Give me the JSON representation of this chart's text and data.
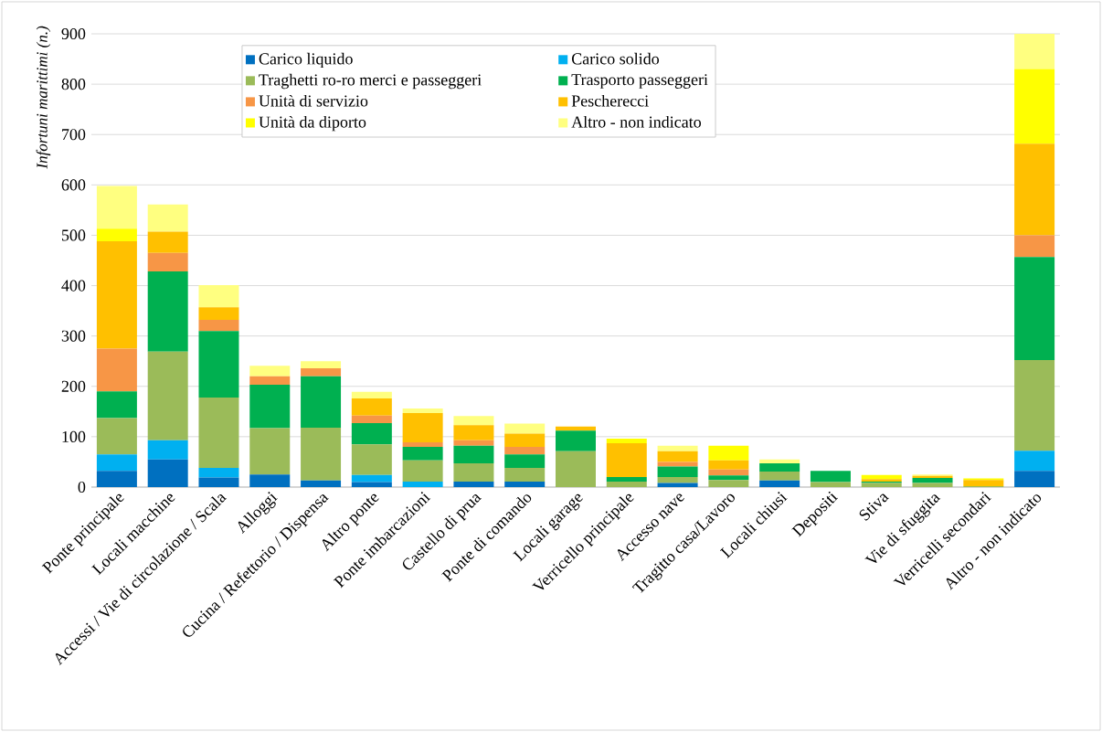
{
  "chart_data": {
    "type": "bar",
    "stacked": true,
    "ylabel": "Infortuni marittimi (n.)",
    "categories": [
      "Ponte principale",
      "Locali macchine",
      "Accessi / Vie di circolazione / Scala",
      "Alloggi",
      "Cucina / Refettorio / Dispensa",
      "Altro ponte",
      "Ponte imbarcazioni",
      "Castello di prua",
      "Ponte di comando",
      "Locali garage",
      "Verricello principale",
      "Accesso nave",
      "Tragitto casa/Lavoro",
      "Locali chiusi",
      "Depositi",
      "Stiva",
      "Vie di sfuggita",
      "Verricelli secondari",
      "Altro - non indicato"
    ],
    "series": [
      {
        "name": "Carico liquido",
        "color": "#0070c0",
        "values": [
          32,
          55,
          19,
          25,
          13,
          10,
          0,
          11,
          11,
          0,
          0,
          8,
          0,
          13,
          0,
          0,
          0,
          0,
          32
        ]
      },
      {
        "name": "Carico solido",
        "color": "#00b0f0",
        "values": [
          33,
          38,
          19,
          0,
          0,
          14,
          11,
          0,
          0,
          0,
          0,
          0,
          0,
          0,
          0,
          0,
          0,
          0,
          40
        ]
      },
      {
        "name": "Traghetti ro-ro merci e passeggeri",
        "color": "#9bbb59",
        "values": [
          72,
          176,
          140,
          92,
          105,
          61,
          42,
          36,
          27,
          71,
          11,
          12,
          14,
          18,
          10,
          8,
          8,
          2,
          180
        ]
      },
      {
        "name": "Trasporto passeggeri",
        "color": "#00b050",
        "values": [
          53,
          159,
          132,
          86,
          102,
          42,
          27,
          35,
          27,
          41,
          9,
          21,
          9,
          16,
          22,
          3,
          10,
          0,
          205
        ]
      },
      {
        "name": "Unità di servizio",
        "color": "#f79646",
        "values": [
          85,
          37,
          22,
          17,
          16,
          15,
          9,
          11,
          15,
          0,
          0,
          9,
          12,
          0,
          0,
          0,
          0,
          0,
          43
        ]
      },
      {
        "name": "Pescherecci",
        "color": "#ffc000",
        "values": [
          213,
          42,
          25,
          0,
          0,
          34,
          58,
          30,
          26,
          8,
          67,
          21,
          18,
          0,
          0,
          5,
          4,
          12,
          182
        ]
      },
      {
        "name": "Unità da diporto",
        "color": "#ffff00",
        "values": [
          25,
          0,
          0,
          0,
          0,
          0,
          0,
          0,
          0,
          0,
          9,
          0,
          29,
          0,
          0,
          8,
          0,
          3,
          148
        ]
      },
      {
        "name": "Altro - non indicato",
        "color": "#ffff80",
        "values": [
          85,
          54,
          44,
          21,
          14,
          13,
          9,
          18,
          20,
          0,
          0,
          11,
          0,
          8,
          0,
          0,
          3,
          0,
          70
        ]
      }
    ],
    "ylim": [
      0,
      900
    ],
    "yticks": [
      0,
      100,
      200,
      300,
      400,
      500,
      600,
      700,
      800,
      900
    ],
    "grid": "y",
    "legend": "top"
  }
}
